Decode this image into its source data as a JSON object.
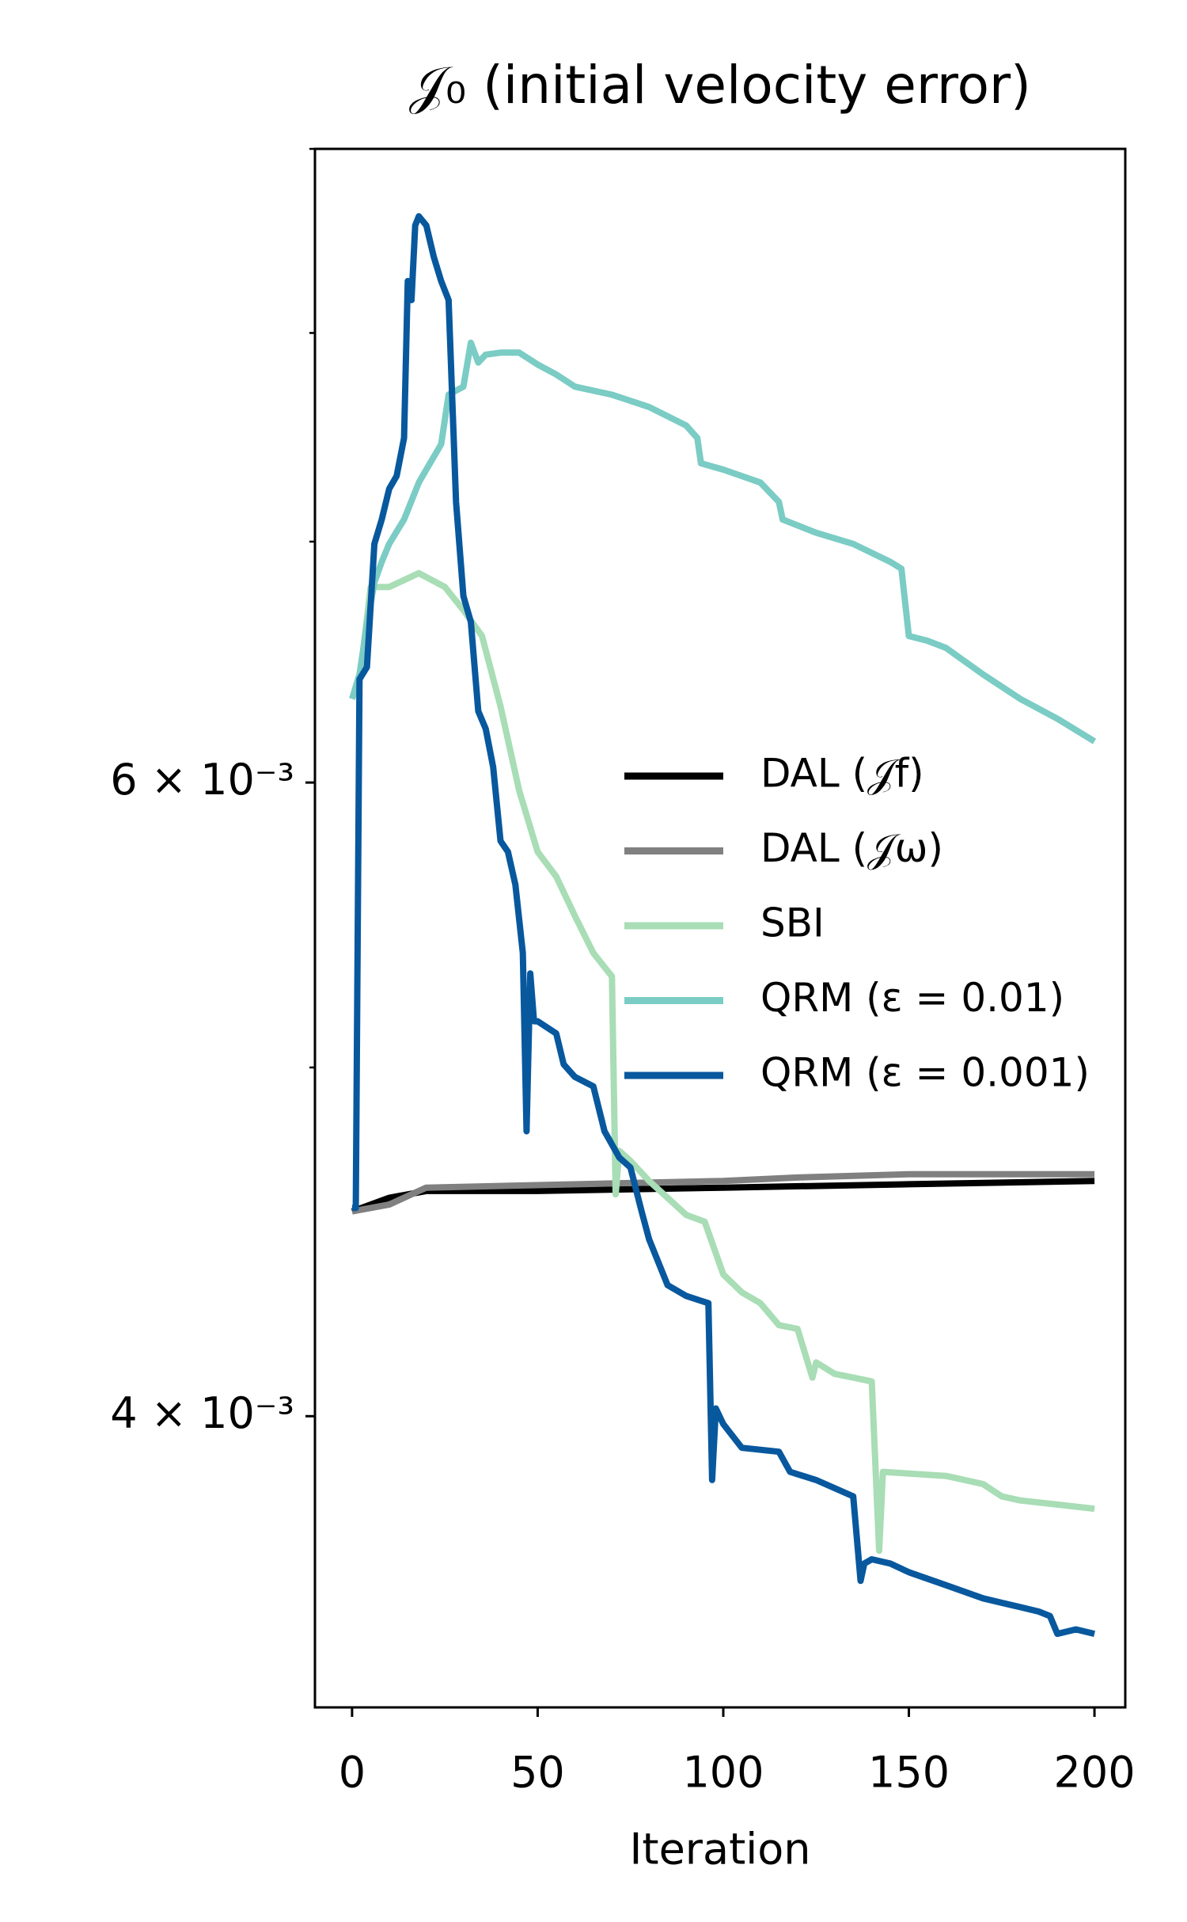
{
  "chart_data": {
    "type": "line",
    "title": "𝒥₀ (initial velocity error)",
    "x_label": "Iteration",
    "xlim": [
      -10,
      208.3
    ],
    "xticks": [
      0,
      50,
      100,
      150,
      200
    ],
    "ylim": [
      0.00332,
      0.009
    ],
    "y_scale": "log",
    "yticks": [
      {
        "value": 0.004,
        "label": "4 × 10⁻³"
      },
      {
        "value": 0.006,
        "label": "6 × 10⁻³"
      }
    ],
    "yminor_ticks": [
      0.005,
      0.007,
      0.008,
      0.009
    ],
    "legend": "center right",
    "series": [
      {
        "name": "DAL (𝒥f)",
        "color": "#000000",
        "x": [
          0,
          10,
          20,
          50,
          100,
          150,
          200
        ],
        "values": [
          0.00456,
          0.0046,
          0.00462,
          0.00462,
          0.00463,
          0.00464,
          0.00465
        ]
      },
      {
        "name": "DAL (𝒥ω)",
        "color": "#808080",
        "x": [
          0,
          10,
          18,
          20,
          100,
          120,
          150,
          200
        ],
        "values": [
          0.00456,
          0.00458,
          0.00462,
          0.00463,
          0.00465,
          0.00466,
          0.00467,
          0.00467
        ]
      },
      {
        "name": "SBI",
        "color": "#a8ddb5",
        "x": [
          0,
          2,
          5,
          10,
          18,
          25,
          30,
          35,
          40,
          45,
          50,
          55,
          60,
          65,
          70,
          71,
          72,
          75,
          80,
          85,
          90,
          95,
          100,
          105,
          110,
          115,
          120,
          124,
          125,
          130,
          135,
          140,
          142,
          143,
          160,
          170,
          175,
          180,
          190,
          200
        ],
        "values": [
          0.00633,
          0.0064,
          0.0068,
          0.0068,
          0.00686,
          0.0068,
          0.0067,
          0.00659,
          0.0063,
          0.00597,
          0.00574,
          0.00565,
          0.00551,
          0.00538,
          0.0053,
          0.00461,
          0.00474,
          0.00471,
          0.00465,
          0.0046,
          0.00455,
          0.00453,
          0.00438,
          0.00433,
          0.0043,
          0.00424,
          0.00423,
          0.0041,
          0.00414,
          0.00411,
          0.0041,
          0.00409,
          0.00367,
          0.00386,
          0.00385,
          0.00383,
          0.0038,
          0.00379,
          0.00378,
          0.00377
        ]
      },
      {
        "name": "QRM (ε = 0.01)",
        "color": "#7bccc4",
        "x": [
          0,
          2,
          4,
          6,
          8,
          10,
          14,
          18,
          20,
          22,
          24,
          26,
          30,
          32,
          34,
          36,
          40,
          45,
          50,
          55,
          60,
          70,
          80,
          90,
          93,
          94,
          100,
          110,
          115,
          116,
          125,
          135,
          145,
          148,
          150,
          155,
          160,
          170,
          180,
          190,
          200
        ],
        "values": [
          0.00633,
          0.00643,
          0.00664,
          0.00682,
          0.00691,
          0.00699,
          0.0071,
          0.00727,
          0.00733,
          0.00739,
          0.00745,
          0.00769,
          0.00773,
          0.00795,
          0.00785,
          0.00789,
          0.0079,
          0.0079,
          0.00784,
          0.00779,
          0.00773,
          0.00769,
          0.00763,
          0.00754,
          0.00748,
          0.00736,
          0.00733,
          0.00727,
          0.00718,
          0.0071,
          0.00704,
          0.00699,
          0.00691,
          0.00688,
          0.00659,
          0.00657,
          0.00654,
          0.00643,
          0.00633,
          0.00625,
          0.00616
        ]
      },
      {
        "name": "QRM (ε = 0.001)",
        "color": "#08589e",
        "x": [
          0,
          1,
          2,
          4,
          6,
          8,
          10,
          12,
          14,
          15,
          16,
          17,
          18,
          20,
          22,
          24,
          26,
          28,
          30,
          32,
          34,
          36,
          38,
          40,
          42,
          44,
          46,
          47,
          48,
          49,
          50,
          55,
          57,
          60,
          65,
          68,
          72,
          75,
          78,
          80,
          85,
          90,
          96,
          97,
          98,
          100,
          105,
          115,
          118,
          125,
          135,
          137,
          138,
          140,
          145,
          150,
          160,
          170,
          180,
          185,
          188,
          190,
          195,
          200
        ],
        "values": [
          0.00457,
          0.00457,
          0.00641,
          0.00646,
          0.00699,
          0.0071,
          0.00724,
          0.0073,
          0.00748,
          0.00827,
          0.00817,
          0.00857,
          0.00862,
          0.00857,
          0.0084,
          0.00827,
          0.00817,
          0.00718,
          0.00676,
          0.00665,
          0.00628,
          0.00621,
          0.00606,
          0.00578,
          0.00574,
          0.00562,
          0.00538,
          0.0048,
          0.00531,
          0.00515,
          0.00515,
          0.00511,
          0.00501,
          0.00497,
          0.00494,
          0.0048,
          0.00472,
          0.00469,
          0.00456,
          0.00448,
          0.00435,
          0.00432,
          0.0043,
          0.00384,
          0.00402,
          0.00398,
          0.00392,
          0.00391,
          0.00386,
          0.00384,
          0.0038,
          0.0036,
          0.00364,
          0.00365,
          0.00364,
          0.00362,
          0.00359,
          0.00356,
          0.00354,
          0.00353,
          0.00352,
          0.00348,
          0.00349,
          0.00348
        ]
      }
    ]
  }
}
